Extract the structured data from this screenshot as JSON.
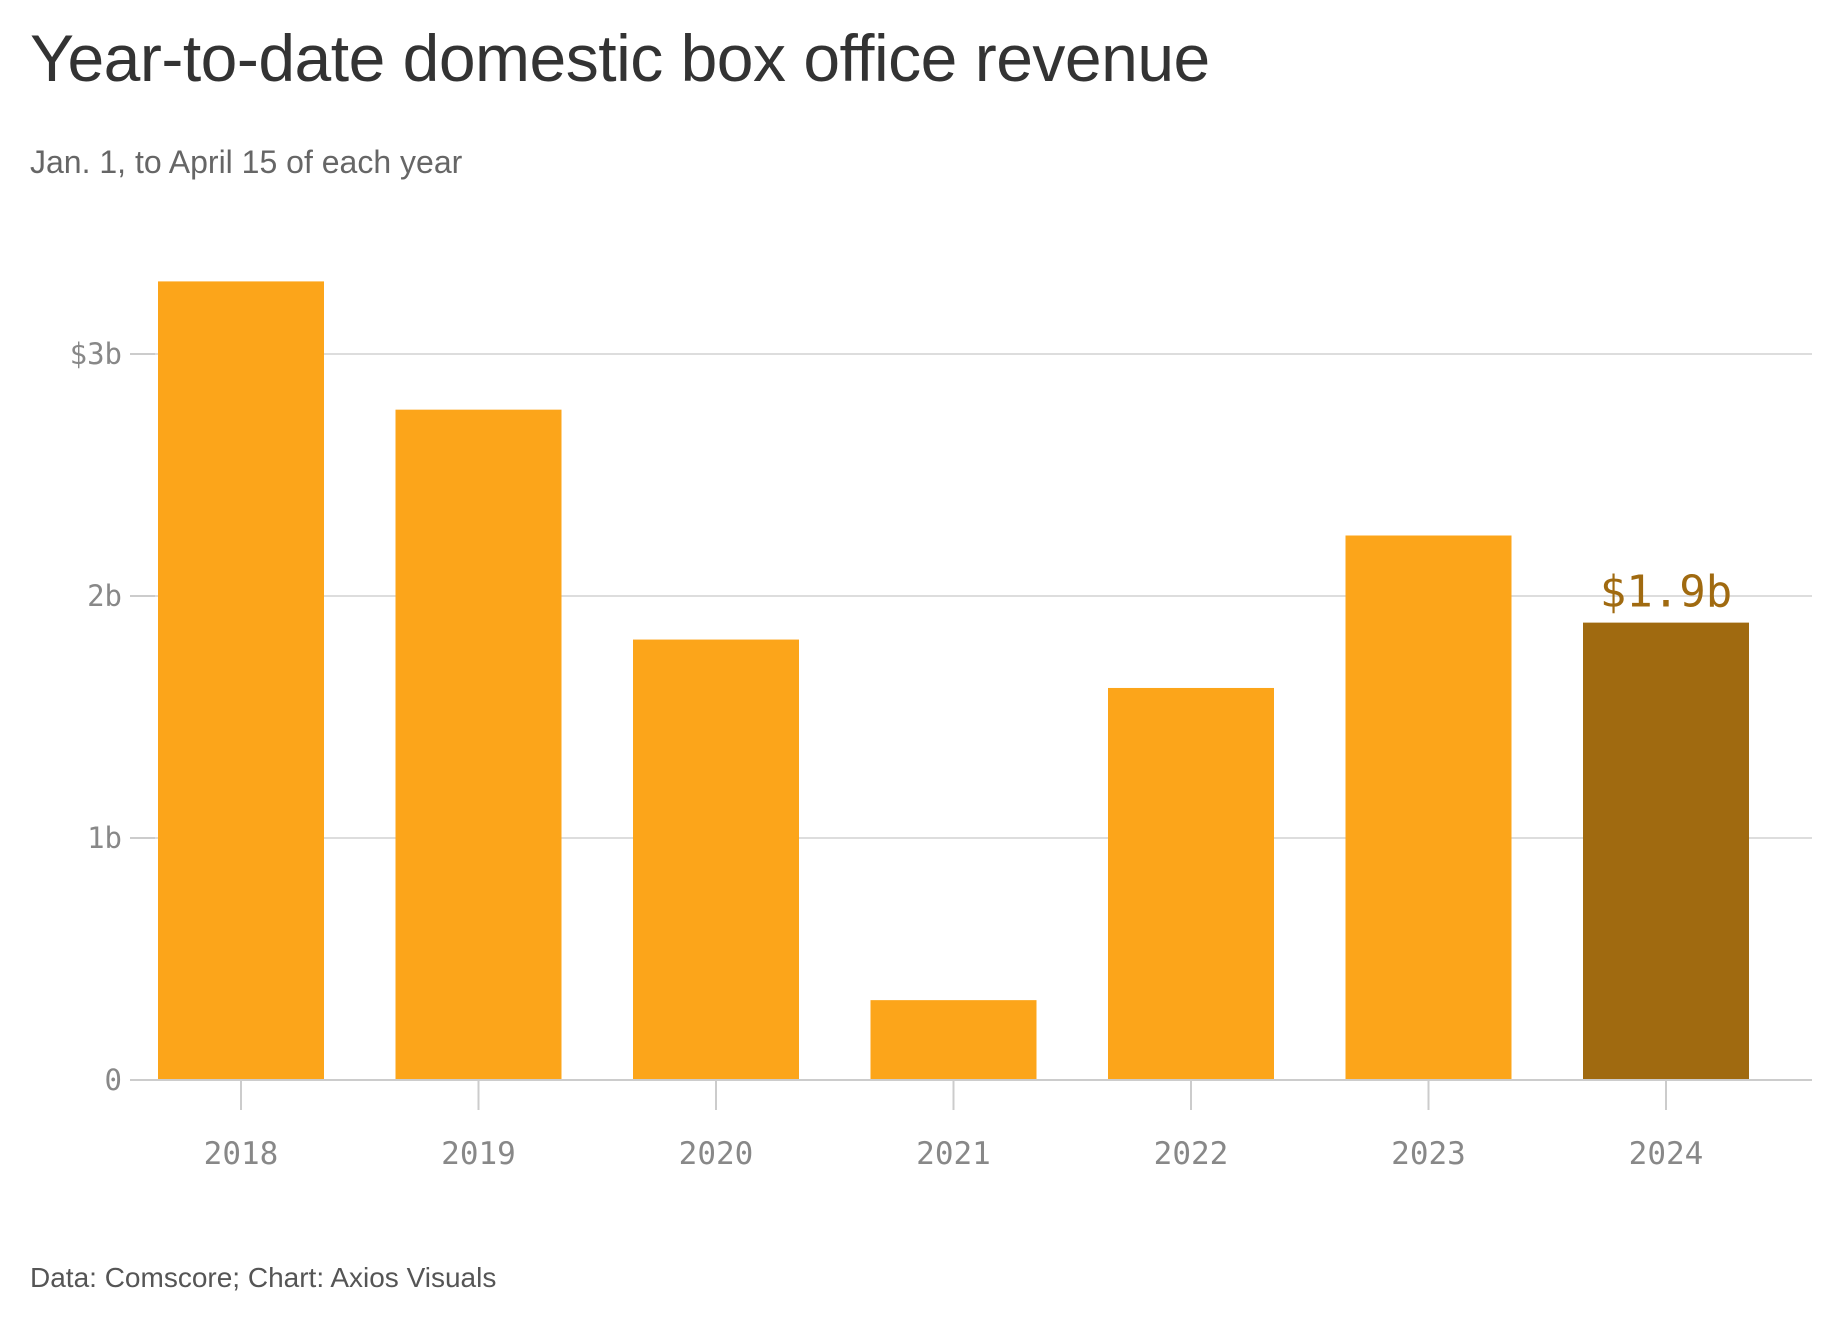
{
  "title": "Year-to-date domestic box office revenue",
  "subtitle": "Jan. 1, to April 15 of each year",
  "source": "Data: Comscore; Chart: Axios Visuals",
  "colors": {
    "bar": "#fca51a",
    "highlight": "#a06a10",
    "grid": "#dddddd",
    "axis": "#cccccc"
  },
  "chart_data": {
    "type": "bar",
    "categories": [
      "2018",
      "2019",
      "2020",
      "2021",
      "2022",
      "2023",
      "2024"
    ],
    "values": [
      3.3,
      2.77,
      1.82,
      0.33,
      1.62,
      2.25,
      1.89
    ],
    "unit": "billions of dollars",
    "ylim": [
      0,
      3.3
    ],
    "yticks": [
      {
        "value": 0,
        "label": "0"
      },
      {
        "value": 1,
        "label": "1b"
      },
      {
        "value": 2,
        "label": "2b"
      },
      {
        "value": 3,
        "label": "$3b"
      }
    ],
    "grid": true,
    "highlight_index": 6,
    "annotation": {
      "index": 6,
      "text": "$1.9b"
    }
  }
}
